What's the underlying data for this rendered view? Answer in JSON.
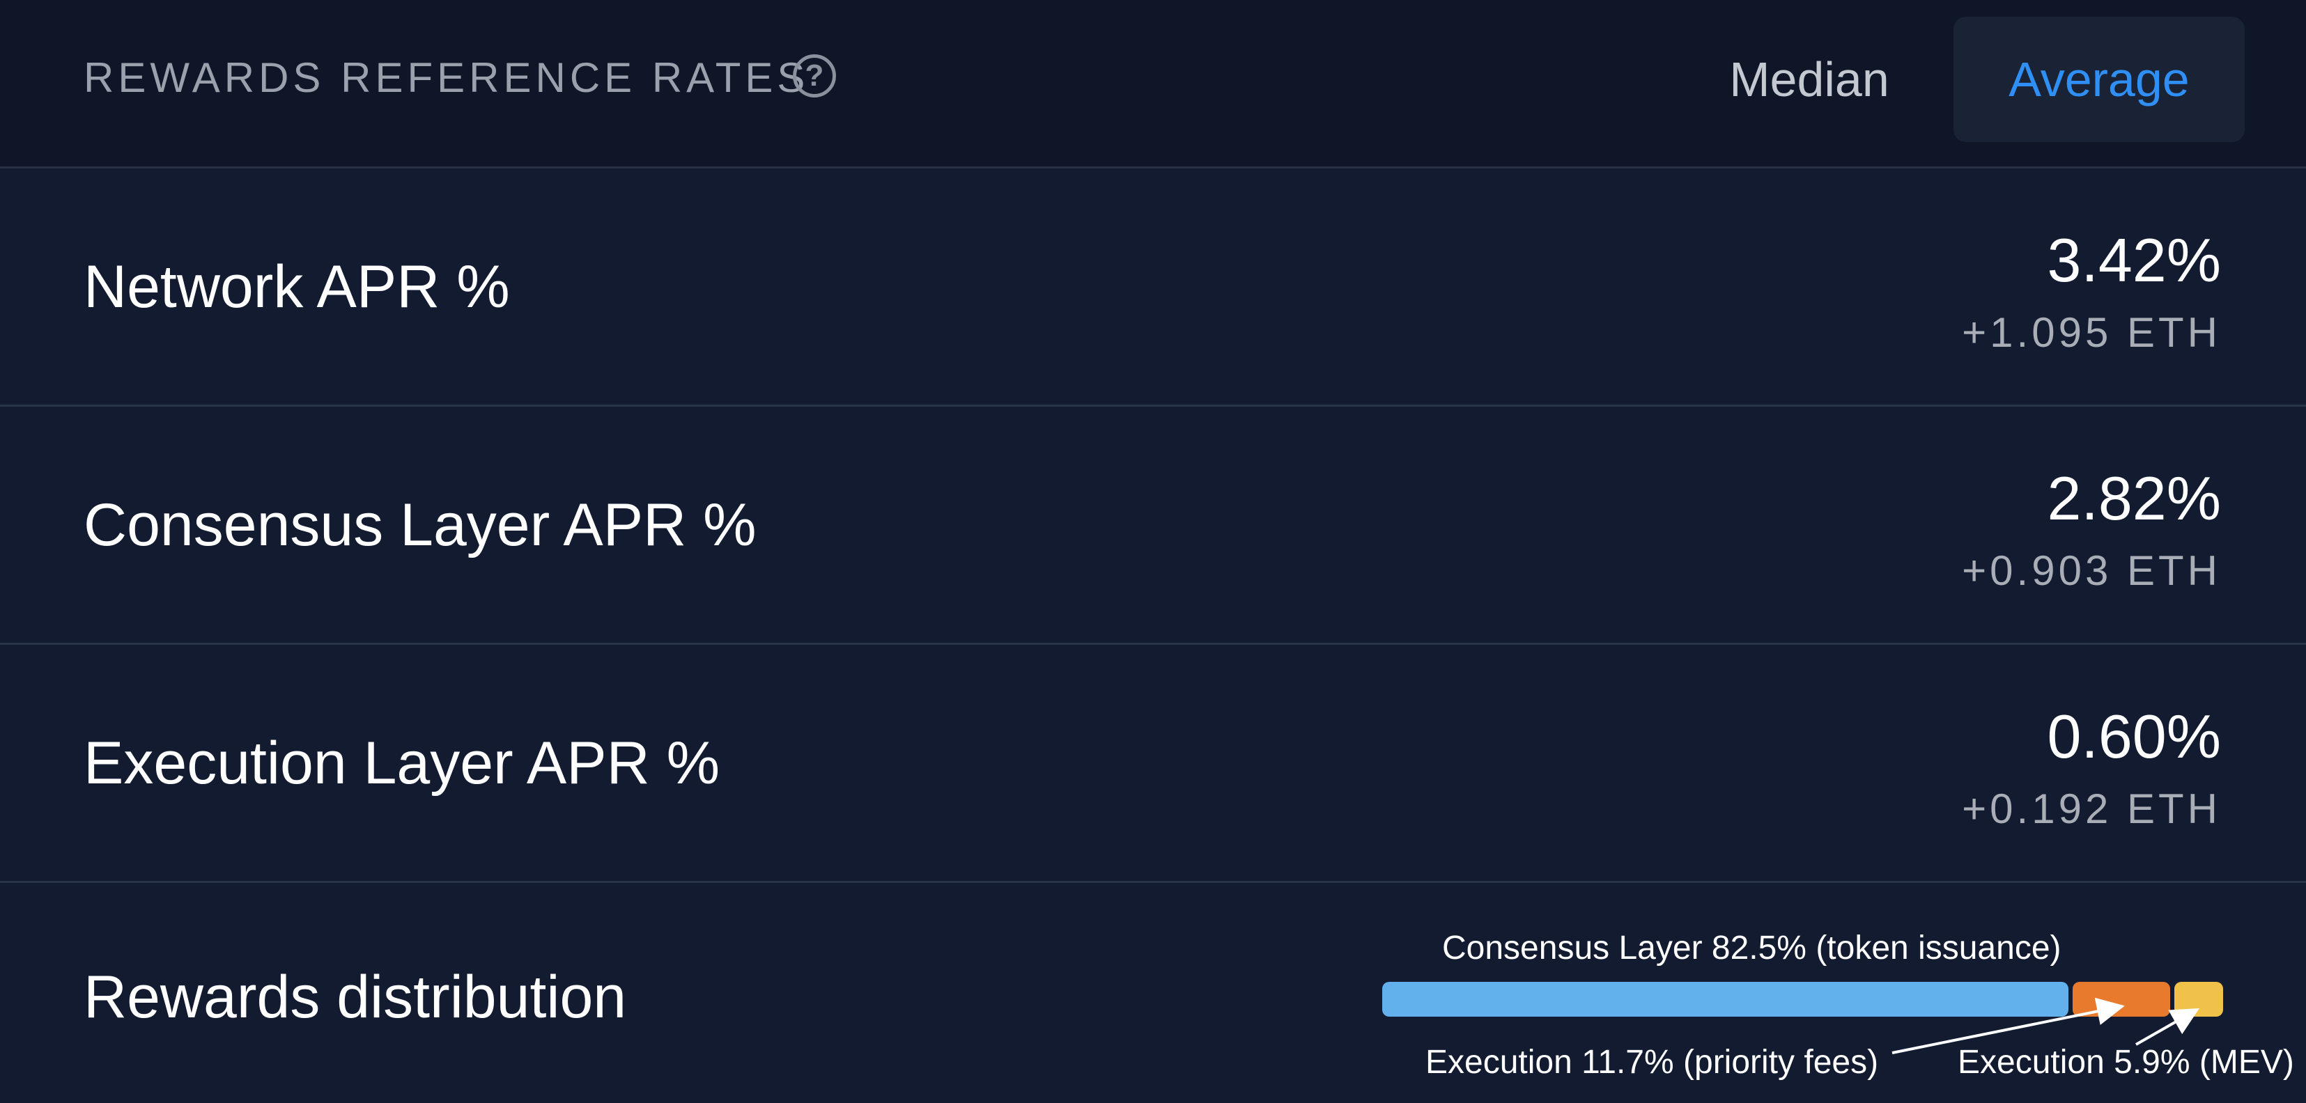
{
  "header": {
    "title": "REWARDS REFERENCE RATES",
    "help_icon": "question-circle-icon",
    "toggle": {
      "options": [
        "Median",
        "Average"
      ],
      "selected": "Average"
    }
  },
  "rows": [
    {
      "label": "Network APR %",
      "value": "3.42%",
      "eth": "+1.095 ETH"
    },
    {
      "label": "Consensus Layer APR %",
      "value": "2.82%",
      "eth": "+0.903 ETH"
    },
    {
      "label": "Execution Layer APR %",
      "value": "0.60%",
      "eth": "+0.192 ETH"
    }
  ],
  "distribution": {
    "label": "Rewards distribution",
    "segments": [
      {
        "name": "Consensus Layer",
        "percent": 82.5,
        "caption": "Consensus Layer 82.5% (token issuance)",
        "color": "#62b0ec"
      },
      {
        "name": "Execution priority fees",
        "percent": 11.7,
        "caption": "Execution 11.7% (priority fees)",
        "color": "#e87a2d"
      },
      {
        "name": "Execution MEV",
        "percent": 5.9,
        "caption": "Execution 5.9% (MEV)",
        "color": "#f0c24a"
      }
    ]
  },
  "colors": {
    "accent": "#2f8ff5",
    "background": "#131b31",
    "header_background": "#0e1628"
  }
}
